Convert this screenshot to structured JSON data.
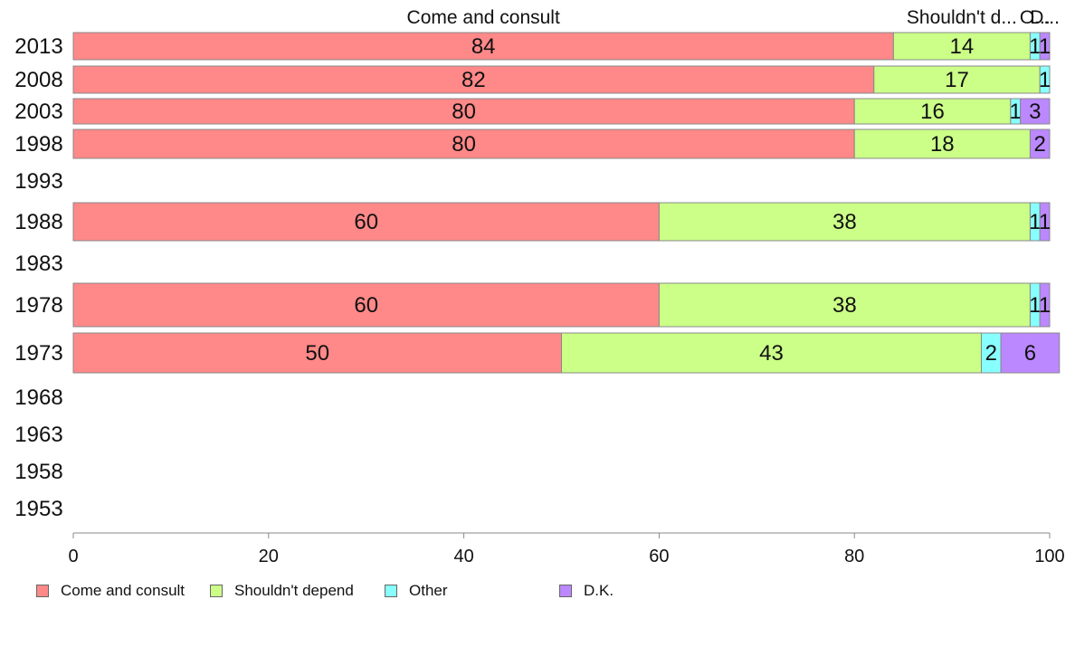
{
  "chart_data": {
    "type": "bar",
    "orientation": "horizontal",
    "stacked": true,
    "categories": [
      "2013",
      "2008",
      "2003",
      "1998",
      "1993",
      "1988",
      "1983",
      "1978",
      "1973",
      "1968",
      "1963",
      "1958",
      "1953"
    ],
    "series": [
      {
        "name": "Come and consult",
        "color": "#ff8888",
        "values": [
          84,
          82,
          80,
          80,
          null,
          60,
          null,
          60,
          50,
          null,
          null,
          null,
          null
        ]
      },
      {
        "name": "Shouldn't depend",
        "color": "#ccff88",
        "values": [
          14,
          17,
          16,
          18,
          null,
          38,
          null,
          38,
          43,
          null,
          null,
          null,
          null
        ]
      },
      {
        "name": "Other",
        "color": "#88ffff",
        "values": [
          1,
          1,
          1,
          0,
          null,
          1,
          null,
          1,
          2,
          null,
          null,
          null,
          null
        ]
      },
      {
        "name": "D.K.",
        "color": "#bb88ff",
        "values": [
          1,
          0,
          3,
          2,
          null,
          1,
          null,
          1,
          6,
          null,
          null,
          null,
          null
        ]
      }
    ],
    "top_labels": [
      "Come and consult",
      "Shouldn't d...",
      "O...",
      "D..."
    ],
    "xlim": [
      0,
      100
    ],
    "xticks": [
      0,
      20,
      40,
      60,
      80,
      100
    ],
    "legend_position": "bottom"
  }
}
